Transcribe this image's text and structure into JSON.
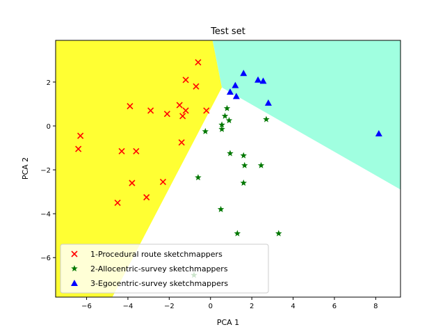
{
  "chart_data": {
    "type": "scatter",
    "title": "Test set",
    "xlabel": "PCA 1",
    "ylabel": "PCA 2",
    "xlim": [
      -7.5,
      9.2
    ],
    "ylim": [
      -7.8,
      3.9
    ],
    "xticks": [
      -6,
      -4,
      -2,
      0,
      2,
      4,
      6,
      8
    ],
    "yticks": [
      -6,
      -4,
      -2,
      0,
      2
    ],
    "grid": false,
    "legend_position": "lower-left",
    "regions": [
      {
        "class": "1-Procedural route sketchmappers",
        "color": "#ffff33",
        "polygon": [
          [
            -7.5,
            3.9
          ],
          [
            0.1,
            3.9
          ],
          [
            0.55,
            1.75
          ],
          [
            -4.75,
            -7.8
          ],
          [
            -7.5,
            -7.8
          ]
        ]
      },
      {
        "class": "3-Egocentric-survey sketchmappers",
        "color": "#a0ffe0",
        "polygon": [
          [
            0.1,
            3.9
          ],
          [
            9.2,
            3.9
          ],
          [
            9.2,
            -2.9
          ],
          [
            0.55,
            1.75
          ]
        ]
      },
      {
        "class": "2-Allocentric-survey sketchmappers",
        "color": "#ffffff",
        "polygon": [
          [
            0.55,
            1.75
          ],
          [
            9.2,
            -2.9
          ],
          [
            9.2,
            -7.8
          ],
          [
            -4.75,
            -7.8
          ]
        ]
      }
    ],
    "series": [
      {
        "name": "1-Procedural route sketchmappers",
        "marker": "x",
        "color": "#ff0000",
        "points": [
          [
            -0.6,
            2.9
          ],
          [
            -1.2,
            2.1
          ],
          [
            -0.7,
            1.8
          ],
          [
            -3.9,
            0.9
          ],
          [
            -2.9,
            0.7
          ],
          [
            -2.1,
            0.55
          ],
          [
            -1.5,
            0.95
          ],
          [
            -1.2,
            0.7
          ],
          [
            -1.35,
            0.45
          ],
          [
            -0.2,
            0.7
          ],
          [
            -6.3,
            -0.45
          ],
          [
            -6.4,
            -1.05
          ],
          [
            -4.3,
            -1.15
          ],
          [
            -3.6,
            -1.15
          ],
          [
            -1.4,
            -0.75
          ],
          [
            -3.8,
            -2.6
          ],
          [
            -2.3,
            -2.55
          ],
          [
            -3.1,
            -3.25
          ],
          [
            -4.5,
            -3.5
          ]
        ]
      },
      {
        "name": "2-Allocentric-survey sketchmappers",
        "marker": "star",
        "color": "#007700",
        "points": [
          [
            0.8,
            0.8
          ],
          [
            0.7,
            0.45
          ],
          [
            0.9,
            0.25
          ],
          [
            0.55,
            0.05
          ],
          [
            0.55,
            -0.15
          ],
          [
            -0.25,
            -0.25
          ],
          [
            2.7,
            0.3
          ],
          [
            0.95,
            -1.25
          ],
          [
            1.6,
            -1.35
          ],
          [
            1.65,
            -1.8
          ],
          [
            2.45,
            -1.8
          ],
          [
            -0.6,
            -2.35
          ],
          [
            1.6,
            -2.6
          ],
          [
            0.5,
            -3.8
          ],
          [
            1.3,
            -4.9
          ],
          [
            3.3,
            -4.9
          ],
          [
            -0.8,
            -6.8
          ]
        ]
      },
      {
        "name": "3-Egocentric-survey sketchmappers",
        "marker": "triangle",
        "color": "#0000ff",
        "points": [
          [
            1.6,
            2.4
          ],
          [
            2.3,
            2.1
          ],
          [
            2.55,
            2.05
          ],
          [
            1.2,
            1.85
          ],
          [
            0.95,
            1.55
          ],
          [
            1.25,
            1.35
          ],
          [
            2.8,
            1.05
          ],
          [
            8.15,
            -0.35
          ]
        ]
      }
    ]
  }
}
